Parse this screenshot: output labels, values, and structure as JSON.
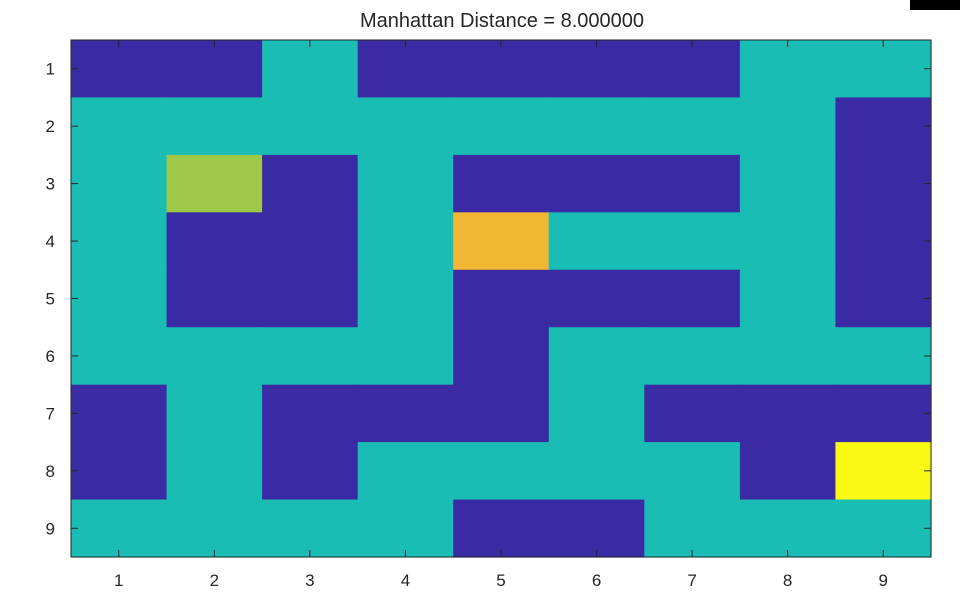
{
  "chart_data": {
    "type": "heatmap",
    "title": "Manhattan Distance = 8.000000",
    "x_ticks": [
      "1",
      "2",
      "3",
      "4",
      "5",
      "6",
      "7",
      "8",
      "9"
    ],
    "y_ticks": [
      "1",
      "2",
      "3",
      "4",
      "5",
      "6",
      "7",
      "8",
      "9"
    ],
    "xlim": [
      0.5,
      9.5
    ],
    "ylim": [
      0.5,
      9.5
    ],
    "y_direction": "top-to-bottom",
    "grid": [
      [
        0,
        0,
        1,
        0,
        0,
        0,
        0,
        1,
        1
      ],
      [
        1,
        1,
        1,
        1,
        1,
        1,
        1,
        1,
        0
      ],
      [
        1,
        3,
        0,
        1,
        0,
        0,
        0,
        1,
        0
      ],
      [
        1,
        0,
        0,
        1,
        2,
        1,
        1,
        1,
        0
      ],
      [
        1,
        0,
        0,
        1,
        0,
        0,
        0,
        1,
        0
      ],
      [
        1,
        1,
        1,
        1,
        0,
        1,
        1,
        1,
        1
      ],
      [
        0,
        1,
        0,
        0,
        0,
        1,
        0,
        0,
        0
      ],
      [
        0,
        1,
        0,
        1,
        1,
        1,
        1,
        0,
        4
      ],
      [
        1,
        1,
        1,
        1,
        0,
        0,
        1,
        1,
        1
      ]
    ],
    "colormap": {
      "0": "#3a2aa4",
      "1": "#1abdb4",
      "2": "#f0b634",
      "3": "#a0c848",
      "4": "#f9f914"
    }
  }
}
